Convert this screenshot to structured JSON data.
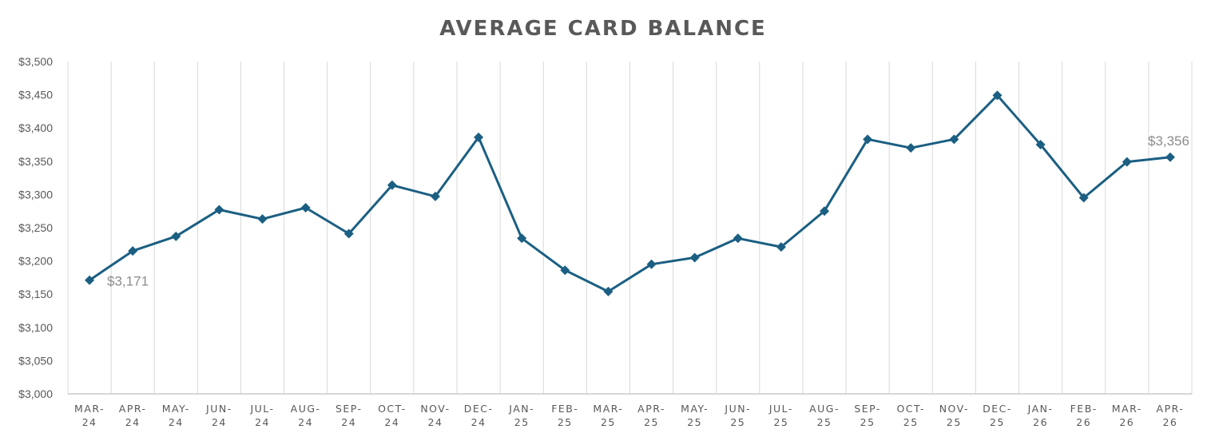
{
  "chart_data": {
    "type": "line",
    "title": "AVERAGE CARD BALANCE",
    "xlabel": "",
    "ylabel": "",
    "ylim": [
      3000,
      3500
    ],
    "y_ticks": [
      "$3,000",
      "$3,050",
      "$3,100",
      "$3,150",
      "$3,200",
      "$3,250",
      "$3,300",
      "$3,350",
      "$3,400",
      "$3,450",
      "$3,500"
    ],
    "y_tick_values": [
      3000,
      3050,
      3100,
      3150,
      3200,
      3250,
      3300,
      3350,
      3400,
      3450,
      3500
    ],
    "categories": [
      [
        "MAR-",
        "24"
      ],
      [
        "APR-",
        "24"
      ],
      [
        "MAY-",
        "24"
      ],
      [
        "JUN-",
        "24"
      ],
      [
        "JUL-",
        "24"
      ],
      [
        "AUG-",
        "24"
      ],
      [
        "SEP-",
        "24"
      ],
      [
        "OCT-",
        "24"
      ],
      [
        "NOV-",
        "24"
      ],
      [
        "DEC-",
        "24"
      ],
      [
        "JAN-",
        "25"
      ],
      [
        "FEB-",
        "25"
      ],
      [
        "MAR-",
        "25"
      ],
      [
        "APR-",
        "25"
      ],
      [
        "MAY-",
        "25"
      ],
      [
        "JUN-",
        "25"
      ],
      [
        "JUL-",
        "25"
      ],
      [
        "AUG-",
        "25"
      ],
      [
        "SEP-",
        "25"
      ],
      [
        "OCT-",
        "25"
      ],
      [
        "NOV-",
        "25"
      ],
      [
        "DEC-",
        "25"
      ],
      [
        "JAN-",
        "26"
      ],
      [
        "FEB-",
        "26"
      ],
      [
        "MAR-",
        "26"
      ],
      [
        "APR-",
        "26"
      ]
    ],
    "series": [
      {
        "values": [
          3171,
          3215,
          3237,
          3277,
          3263,
          3280,
          3241,
          3314,
          3297,
          3386,
          3234,
          3186,
          3154,
          3195,
          3205,
          3234,
          3221,
          3275,
          3383,
          3370,
          3383,
          3449,
          3375,
          3295,
          3349,
          3356
        ]
      }
    ],
    "data_labels": [
      {
        "index": 0,
        "text": "$3,171"
      },
      {
        "index": 25,
        "text": "$3,356"
      }
    ],
    "grid": {
      "vertical": true,
      "horizontal": false
    },
    "legend": "none",
    "colors": {
      "line": "#1b5f82",
      "grid": "#d9d9d9",
      "axis": "#bfbfbf",
      "title": "#595959",
      "tick_text": "#595959",
      "data_label": "#8c8c8c"
    }
  }
}
